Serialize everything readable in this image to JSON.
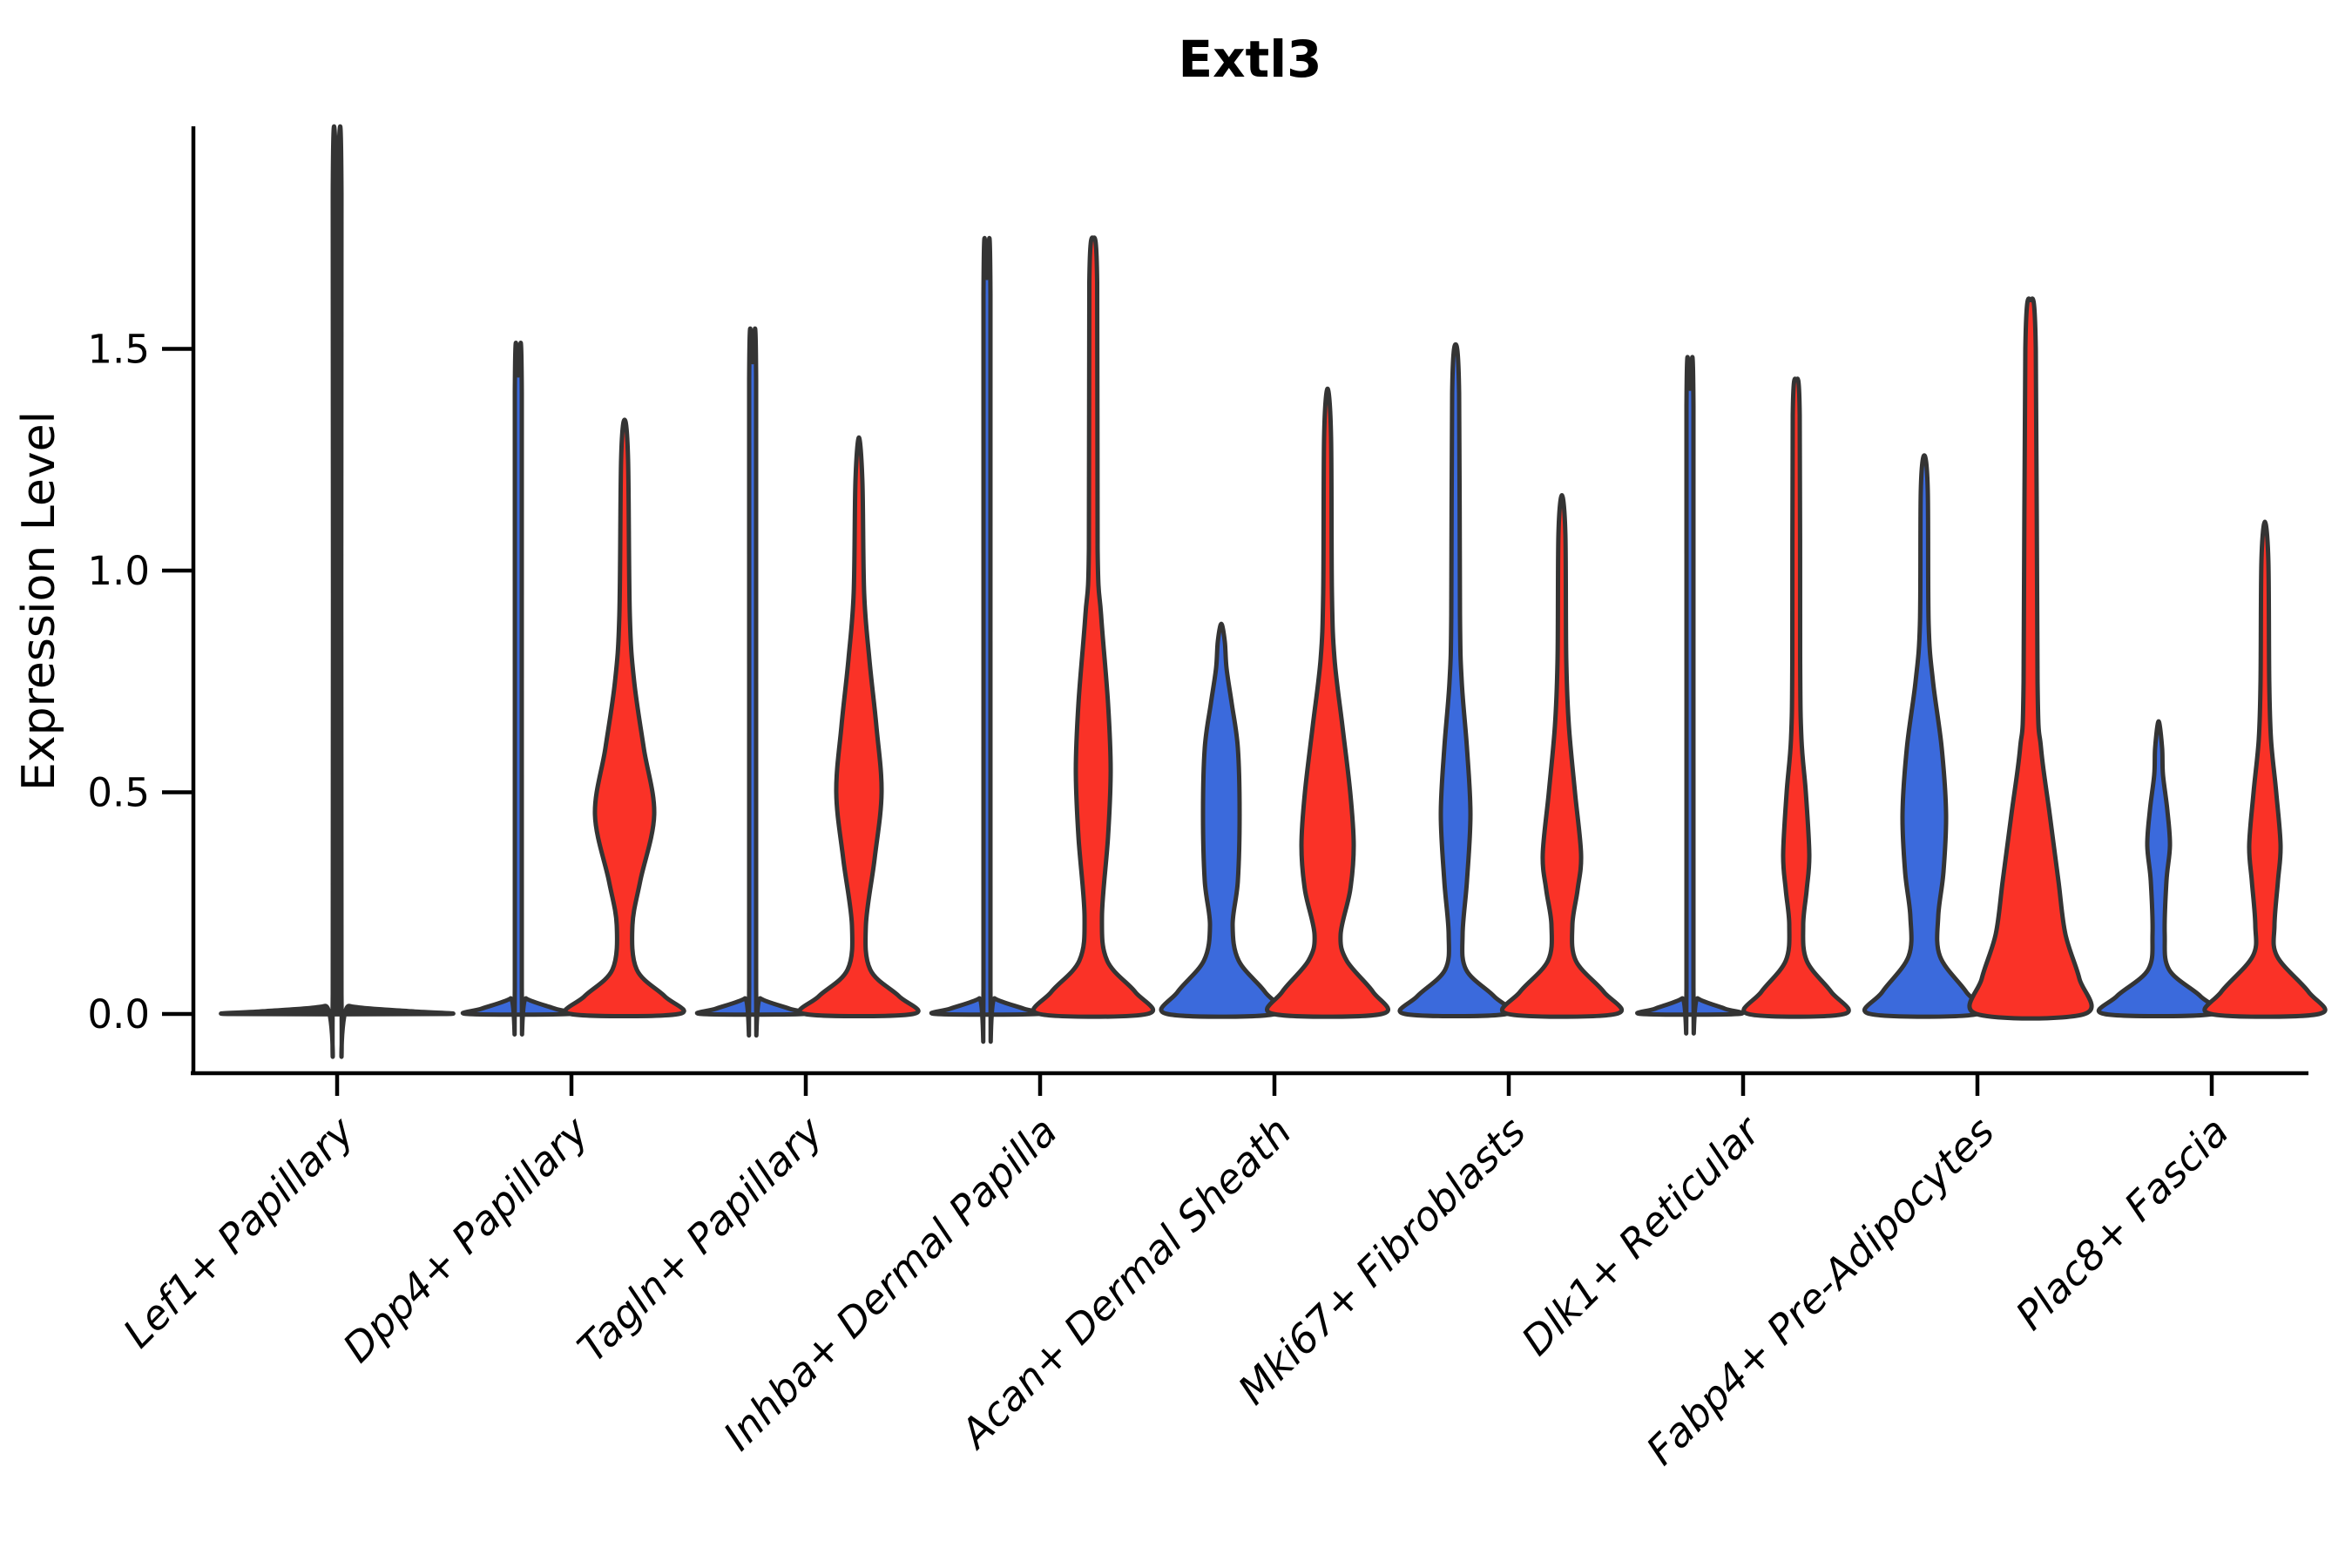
{
  "chart_data": {
    "type": "violin",
    "title": "Extl3",
    "ylabel": "Expression Level",
    "xlabel": "",
    "y_ticks": [
      0.0,
      0.5,
      1.0,
      1.5
    ],
    "y_tick_labels": [
      "0.0",
      "0.5",
      "1.0",
      "1.5"
    ],
    "ylim": [
      -0.05,
      2.0
    ],
    "grid": false,
    "legend_position": "none",
    "split_groups": [
      "blue",
      "red"
    ],
    "categories": [
      {
        "label": "Lef1+ Papillary",
        "violins": [
          {
            "group": "single",
            "max_expression": 1.9,
            "body": "flat-at-zero",
            "profile": [
              [
                0,
                122
              ],
              [
                0.006,
                85
              ],
              [
                0.018,
                14
              ],
              [
                0.045,
                5
              ],
              [
                1.85,
                5
              ],
              [
                1.9,
                0
              ]
            ]
          }
        ]
      },
      {
        "label": "Dpp4+ Papillary",
        "violins": [
          {
            "group": "blue",
            "max_expression": 1.44,
            "body": "flat-at-zero",
            "profile": [
              [
                0,
                58
              ],
              [
                0.012,
                42
              ],
              [
                0.035,
                9
              ],
              [
                0.06,
                4
              ],
              [
                1.4,
                4
              ],
              [
                1.44,
                0
              ]
            ]
          },
          {
            "group": "red",
            "max_expression": 1.34,
            "body": "base-and-bulge-0.45",
            "profile": [
              [
                0,
                62
              ],
              [
                0.04,
                46
              ],
              [
                0.1,
                14
              ],
              [
                0.2,
                9
              ],
              [
                0.3,
                18
              ],
              [
                0.45,
                34
              ],
              [
                0.6,
                22
              ],
              [
                0.75,
                11
              ],
              [
                0.9,
                6
              ],
              [
                1.25,
                4
              ],
              [
                1.34,
                0
              ]
            ]
          }
        ]
      },
      {
        "label": "Tagln+ Papillary",
        "violins": [
          {
            "group": "blue",
            "max_expression": 1.47,
            "body": "flat-at-zero",
            "profile": [
              [
                0,
                58
              ],
              [
                0.012,
                42
              ],
              [
                0.035,
                9
              ],
              [
                0.06,
                4
              ],
              [
                1.43,
                4
              ],
              [
                1.47,
                0
              ]
            ]
          },
          {
            "group": "red",
            "max_expression": 1.3,
            "body": "base-and-bulge-0.50",
            "profile": [
              [
                0,
                62
              ],
              [
                0.04,
                46
              ],
              [
                0.1,
                13
              ],
              [
                0.2,
                8
              ],
              [
                0.35,
                18
              ],
              [
                0.5,
                26
              ],
              [
                0.65,
                20
              ],
              [
                0.8,
                12
              ],
              [
                0.95,
                6
              ],
              [
                1.2,
                4
              ],
              [
                1.3,
                0
              ]
            ]
          }
        ]
      },
      {
        "label": "Inhba+ Dermal Papilla",
        "violins": [
          {
            "group": "blue",
            "max_expression": 1.66,
            "body": "flat-at-zero",
            "profile": [
              [
                0,
                58
              ],
              [
                0.012,
                42
              ],
              [
                0.035,
                9
              ],
              [
                0.06,
                4
              ],
              [
                1.62,
                4
              ],
              [
                1.66,
                0
              ]
            ]
          },
          {
            "group": "red",
            "max_expression": 1.75,
            "body": "base-and-slim-bulge-0.55",
            "profile": [
              [
                0,
                62
              ],
              [
                0.05,
                48
              ],
              [
                0.12,
                16
              ],
              [
                0.22,
                10
              ],
              [
                0.4,
                17
              ],
              [
                0.55,
                20
              ],
              [
                0.7,
                17
              ],
              [
                0.9,
                9
              ],
              [
                1.05,
                5
              ],
              [
                1.65,
                4.5
              ],
              [
                1.75,
                0
              ]
            ]
          }
        ]
      },
      {
        "label": "Acan+ Dermal Sheath",
        "violins": [
          {
            "group": "blue",
            "max_expression": 0.88,
            "body": "base-and-column-bulge-0.45",
            "profile": [
              [
                0,
                62
              ],
              [
                0.05,
                50
              ],
              [
                0.12,
                20
              ],
              [
                0.2,
                13
              ],
              [
                0.3,
                19
              ],
              [
                0.45,
                21
              ],
              [
                0.6,
                19
              ],
              [
                0.7,
                12
              ],
              [
                0.78,
                6
              ],
              [
                0.84,
                4
              ],
              [
                0.88,
                0
              ]
            ]
          },
          {
            "group": "red",
            "max_expression": 1.41,
            "body": "base-and-wide-bulge-0.38",
            "profile": [
              [
                0,
                62
              ],
              [
                0.05,
                52
              ],
              [
                0.12,
                22
              ],
              [
                0.18,
                15
              ],
              [
                0.28,
                26
              ],
              [
                0.38,
                30
              ],
              [
                0.5,
                26
              ],
              [
                0.65,
                17
              ],
              [
                0.8,
                8
              ],
              [
                0.95,
                5
              ],
              [
                1.3,
                4
              ],
              [
                1.41,
                0
              ]
            ]
          }
        ]
      },
      {
        "label": "Mki67+ Fibroblasts",
        "violins": [
          {
            "group": "blue",
            "max_expression": 1.51,
            "body": "base-and-slim-bulge-0.45",
            "profile": [
              [
                0,
                58
              ],
              [
                0.04,
                44
              ],
              [
                0.1,
                12
              ],
              [
                0.18,
                8
              ],
              [
                0.3,
                13
              ],
              [
                0.45,
                17
              ],
              [
                0.6,
                13
              ],
              [
                0.75,
                7
              ],
              [
                0.9,
                5
              ],
              [
                1.4,
                4
              ],
              [
                1.51,
                0
              ]
            ]
          },
          {
            "group": "red",
            "max_expression": 1.17,
            "body": "base-and-bulge-0.36",
            "profile": [
              [
                0,
                62
              ],
              [
                0.05,
                48
              ],
              [
                0.12,
                16
              ],
              [
                0.2,
                12
              ],
              [
                0.28,
                18
              ],
              [
                0.36,
                22
              ],
              [
                0.5,
                15
              ],
              [
                0.65,
                8
              ],
              [
                0.8,
                5
              ],
              [
                1.08,
                4
              ],
              [
                1.17,
                0
              ]
            ]
          }
        ]
      },
      {
        "label": "Dlk1+ Reticular",
        "violins": [
          {
            "group": "blue",
            "max_expression": 1.41,
            "body": "flat-at-zero",
            "profile": [
              [
                0,
                55
              ],
              [
                0.012,
                40
              ],
              [
                0.035,
                9
              ],
              [
                0.06,
                4
              ],
              [
                1.37,
                4
              ],
              [
                1.41,
                0
              ]
            ]
          },
          {
            "group": "red",
            "max_expression": 1.43,
            "body": "base-and-slim-bulge-0.36",
            "profile": [
              [
                0,
                55
              ],
              [
                0.05,
                40
              ],
              [
                0.12,
                12
              ],
              [
                0.2,
                8
              ],
              [
                0.28,
                12
              ],
              [
                0.36,
                15
              ],
              [
                0.5,
                11
              ],
              [
                0.62,
                6
              ],
              [
                0.8,
                4.5
              ],
              [
                1.35,
                4
              ],
              [
                1.43,
                0
              ]
            ]
          }
        ]
      },
      {
        "label": "Fabp4+ Pre-Adipocytes",
        "violins": [
          {
            "group": "blue",
            "max_expression": 1.26,
            "body": "base-and-wide-bulge-0.45",
            "profile": [
              [
                0,
                62
              ],
              [
                0.05,
                48
              ],
              [
                0.13,
                18
              ],
              [
                0.22,
                16
              ],
              [
                0.32,
                22
              ],
              [
                0.45,
                25
              ],
              [
                0.6,
                20
              ],
              [
                0.75,
                10
              ],
              [
                0.88,
                5
              ],
              [
                1.18,
                4
              ],
              [
                1.26,
                0
              ]
            ]
          },
          {
            "group": "red",
            "max_expression": 1.61,
            "body": "broad-base-tapering",
            "profile": [
              [
                0,
                62
              ],
              [
                0.08,
                56
              ],
              [
                0.18,
                40
              ],
              [
                0.3,
                32
              ],
              [
                0.45,
                22
              ],
              [
                0.6,
                12
              ],
              [
                0.75,
                8
              ],
              [
                1.5,
                6
              ],
              [
                1.61,
                0
              ]
            ]
          }
        ]
      },
      {
        "label": "Plac8+ Fascia",
        "violins": [
          {
            "group": "blue",
            "max_expression": 0.66,
            "body": "base-and-small-bulge-0.38",
            "profile": [
              [
                0,
                62
              ],
              [
                0.04,
                48
              ],
              [
                0.1,
                12
              ],
              [
                0.18,
                7
              ],
              [
                0.3,
                9
              ],
              [
                0.38,
                13
              ],
              [
                0.46,
                10
              ],
              [
                0.54,
                5
              ],
              [
                0.6,
                4
              ],
              [
                0.66,
                0
              ]
            ]
          },
          {
            "group": "red",
            "max_expression": 1.11,
            "body": "base-and-bulge-0.38",
            "profile": [
              [
                0,
                62
              ],
              [
                0.05,
                50
              ],
              [
                0.13,
                14
              ],
              [
                0.2,
                11
              ],
              [
                0.3,
                15
              ],
              [
                0.38,
                18
              ],
              [
                0.5,
                13
              ],
              [
                0.62,
                7
              ],
              [
                0.75,
                5
              ],
              [
                1.02,
                4
              ],
              [
                1.11,
                0
              ]
            ]
          }
        ]
      }
    ]
  },
  "styles": {
    "blue": "#3B6ADC",
    "red": "#FA3227",
    "outline": "#343434",
    "axis_color": "#000000",
    "background": "#FFFFFF"
  }
}
